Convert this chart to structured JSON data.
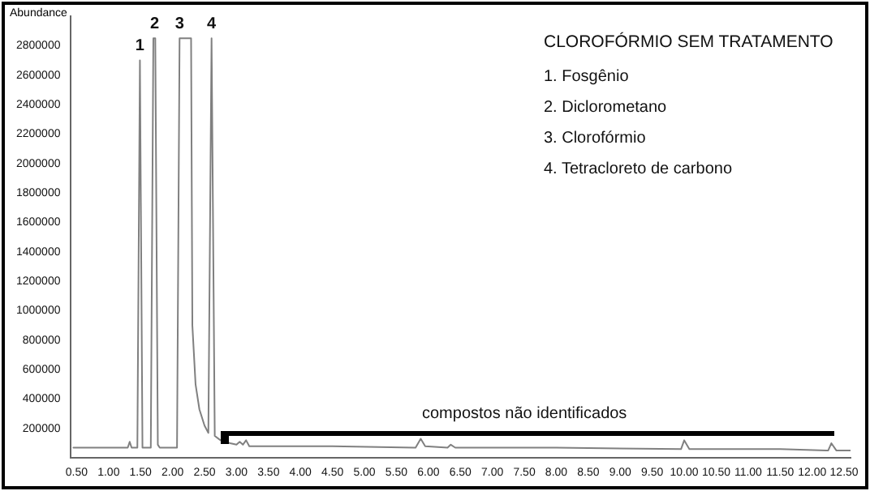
{
  "chart_data": {
    "type": "line",
    "title": "CLOROFÓRMIO SEM TRATAMENTO",
    "ylabel": "Abundance",
    "annotations": [
      {
        "text": "1",
        "x": 1.49,
        "y": 2700000
      },
      {
        "text": "2",
        "x": 1.72,
        "y": 2850000
      },
      {
        "text": "3",
        "x": 2.11,
        "y": 2850000
      },
      {
        "text": "4",
        "x": 2.61,
        "y": 2850000
      },
      "1. Fosgênio",
      "2. Diclorometano",
      "3. Clorofórmio",
      "4. Tetracloreto de carbono",
      "compostos não identificados"
    ],
    "x": [
      0.45,
      1.3,
      1.33,
      1.36,
      1.45,
      1.49,
      1.53,
      1.66,
      1.7,
      1.73,
      1.77,
      1.8,
      2.07,
      2.11,
      2.29,
      2.31,
      2.36,
      2.42,
      2.5,
      2.56,
      2.61,
      2.66,
      2.75,
      2.9,
      3.0,
      3.05,
      3.1,
      3.15,
      3.2,
      3.5,
      4.5,
      5.8,
      5.88,
      5.95,
      6.3,
      6.35,
      6.42,
      8.0,
      9.95,
      10.0,
      10.08,
      11.5,
      12.25,
      12.3,
      12.38,
      12.6
    ],
    "series": [
      {
        "color": "#808080",
        "values": [
          70000,
          70000,
          110000,
          70000,
          70000,
          2700000,
          70000,
          70000,
          2850000,
          2850000,
          90000,
          70000,
          70000,
          2850000,
          2850000,
          900000,
          500000,
          330000,
          220000,
          170000,
          2850000,
          150000,
          120000,
          100000,
          90000,
          110000,
          90000,
          120000,
          80000,
          80000,
          80000,
          70000,
          130000,
          80000,
          70000,
          90000,
          70000,
          70000,
          60000,
          120000,
          60000,
          60000,
          50000,
          100000,
          50000,
          50000
        ]
      }
    ],
    "xlim": [
      0.4,
      12.6
    ],
    "ylim": [
      0,
      3000000
    ],
    "xticks": [
      {
        "value": 0.5,
        "label": "0.50"
      },
      {
        "value": 1,
        "label": "1.00"
      },
      {
        "value": 1.5,
        "label": "1.50"
      },
      {
        "value": 2,
        "label": "2.00"
      },
      {
        "value": 2.5,
        "label": "2.50"
      },
      {
        "value": 3,
        "label": "3.00"
      },
      {
        "value": 3.5,
        "label": "3.50"
      },
      {
        "value": 4,
        "label": "4.00"
      },
      {
        "value": 4.5,
        "label": "4.50"
      },
      {
        "value": 5,
        "label": "5.00"
      },
      {
        "value": 5.5,
        "label": "5.50"
      },
      {
        "value": 6,
        "label": "6.00"
      },
      {
        "value": 6.5,
        "label": "6.50"
      },
      {
        "value": 7,
        "label": "7.00"
      },
      {
        "value": 7.5,
        "label": "7.50"
      },
      {
        "value": 8,
        "label": "8.00"
      },
      {
        "value": 8.5,
        "label": "8.50"
      },
      {
        "value": 9,
        "label": "9.00"
      },
      {
        "value": 9.5,
        "label": "9.50"
      },
      {
        "value": 10,
        "label": "10.00"
      },
      {
        "value": 10.5,
        "label": "10.50"
      },
      {
        "value": 11,
        "label": "11.00"
      },
      {
        "value": 11.5,
        "label": "11.50"
      },
      {
        "value": 12,
        "label": "12.00"
      },
      {
        "value": 12.5,
        "label": "12.50"
      }
    ],
    "yticks": [
      200000,
      400000,
      600000,
      800000,
      1000000,
      1200000,
      1400000,
      1600000,
      1800000,
      2000000,
      2200000,
      2400000,
      2600000,
      2800000
    ],
    "grid": false,
    "legend": false,
    "marker": "none",
    "line_style": "solid"
  }
}
